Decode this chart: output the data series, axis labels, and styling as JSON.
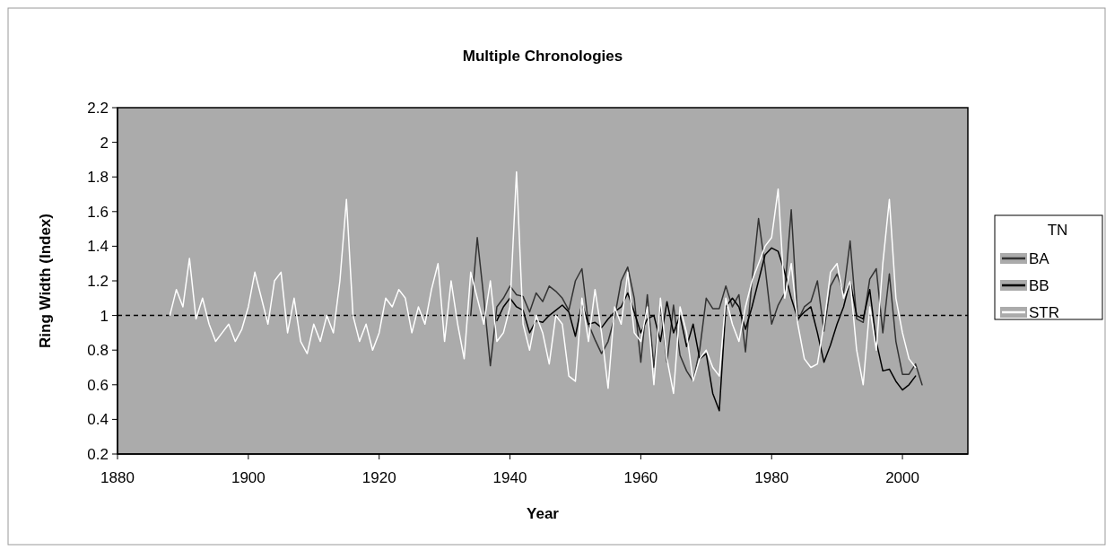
{
  "chart_data": {
    "type": "line",
    "title": "Multiple Chronologies",
    "xlabel": "Year",
    "ylabel": "Ring Width (Index)",
    "legend_title": "TN",
    "legend": "right",
    "grid": false,
    "xlim": [
      1880,
      2010
    ],
    "xticks": [
      1880,
      1900,
      1920,
      1940,
      1960,
      1980,
      2000
    ],
    "ylim": [
      0.2,
      2.2
    ],
    "yticks": [
      0.2,
      0.4,
      0.6,
      0.8,
      1,
      1.2,
      1.4,
      1.6,
      1.8,
      2,
      2.2
    ],
    "ref_lines": [
      {
        "axis": "y",
        "value": 1,
        "color": "#000000",
        "line_style": "dashed"
      }
    ],
    "series": [
      {
        "name": "BA",
        "color": "#333333",
        "x": [
          1934,
          1935,
          1936,
          1937,
          1938,
          1939,
          1940,
          1941,
          1942,
          1943,
          1944,
          1945,
          1946,
          1947,
          1948,
          1949,
          1950,
          1951,
          1952,
          1953,
          1954,
          1955,
          1956,
          1957,
          1958,
          1959,
          1960,
          1961,
          1962,
          1963,
          1964,
          1965,
          1966,
          1967,
          1968,
          1969,
          1970,
          1971,
          1972,
          1973,
          1974,
          1975,
          1976,
          1977,
          1978,
          1979,
          1980,
          1981,
          1982,
          1983,
          1984,
          1985,
          1986,
          1987,
          1988,
          1989,
          1990,
          1991,
          1992,
          1993,
          1994,
          1995,
          1996,
          1997,
          1998,
          1999,
          2000,
          2001,
          2002,
          2003
        ],
        "values": [
          1.0,
          1.45,
          1.1,
          0.71,
          1.05,
          1.1,
          1.17,
          1.12,
          1.11,
          1.02,
          1.13,
          1.08,
          1.17,
          1.14,
          1.1,
          1.03,
          1.2,
          1.27,
          0.95,
          0.86,
          0.78,
          0.85,
          0.99,
          1.2,
          1.28,
          1.1,
          0.73,
          1.12,
          0.7,
          1.07,
          0.73,
          1.06,
          0.77,
          0.68,
          0.62,
          0.8,
          1.1,
          1.04,
          1.04,
          1.17,
          1.05,
          1.12,
          0.79,
          1.2,
          1.56,
          1.28,
          0.95,
          1.06,
          1.13,
          1.61,
          0.97,
          1.05,
          1.08,
          1.2,
          0.91,
          1.17,
          1.24,
          1.13,
          1.43,
          0.98,
          0.96,
          1.21,
          1.27,
          0.9,
          1.24,
          0.85,
          0.66,
          0.66,
          0.72,
          0.6
        ]
      },
      {
        "name": "BB",
        "color": "#000000",
        "x": [
          1938,
          1939,
          1940,
          1941,
          1942,
          1943,
          1944,
          1945,
          1946,
          1947,
          1948,
          1949,
          1950,
          1951,
          1952,
          1953,
          1954,
          1955,
          1956,
          1957,
          1958,
          1959,
          1960,
          1961,
          1962,
          1963,
          1964,
          1965,
          1966,
          1967,
          1968,
          1969,
          1970,
          1971,
          1972,
          1973,
          1974,
          1975,
          1976,
          1977,
          1978,
          1979,
          1980,
          1981,
          1982,
          1983,
          1984,
          1985,
          1986,
          1987,
          1988,
          1989,
          1990,
          1991,
          1992,
          1993,
          1994,
          1995,
          1996,
          1997,
          1998,
          1999,
          2000,
          2001,
          2002
        ],
        "values": [
          0.97,
          1.05,
          1.1,
          1.05,
          1.03,
          0.9,
          0.97,
          0.96,
          1.0,
          1.03,
          1.06,
          1.02,
          0.88,
          1.07,
          0.95,
          0.96,
          0.93,
          0.98,
          1.02,
          1.05,
          1.13,
          1.02,
          0.9,
          0.98,
          1.0,
          0.85,
          1.08,
          0.9,
          1.0,
          0.82,
          0.95,
          0.75,
          0.78,
          0.55,
          0.45,
          1.05,
          1.1,
          1.05,
          0.92,
          1.05,
          1.2,
          1.35,
          1.39,
          1.37,
          1.25,
          1.1,
          0.98,
          1.02,
          1.05,
          0.9,
          0.73,
          0.83,
          0.95,
          1.05,
          1.2,
          1.0,
          0.98,
          1.15,
          0.85,
          0.68,
          0.69,
          0.62,
          0.57,
          0.6,
          0.65
        ]
      },
      {
        "name": "STR",
        "color": "#ffffff",
        "x": [
          1888,
          1889,
          1890,
          1891,
          1892,
          1893,
          1894,
          1895,
          1896,
          1897,
          1898,
          1899,
          1900,
          1901,
          1902,
          1903,
          1904,
          1905,
          1906,
          1907,
          1908,
          1909,
          1910,
          1911,
          1912,
          1913,
          1914,
          1915,
          1916,
          1917,
          1918,
          1919,
          1920,
          1921,
          1922,
          1923,
          1924,
          1925,
          1926,
          1927,
          1928,
          1929,
          1930,
          1931,
          1932,
          1933,
          1934,
          1935,
          1936,
          1937,
          1938,
          1939,
          1940,
          1941,
          1942,
          1943,
          1944,
          1945,
          1946,
          1947,
          1948,
          1949,
          1950,
          1951,
          1952,
          1953,
          1954,
          1955,
          1956,
          1957,
          1958,
          1959,
          1960,
          1961,
          1962,
          1963,
          1964,
          1965,
          1966,
          1967,
          1968,
          1969,
          1970,
          1971,
          1972,
          1973,
          1974,
          1975,
          1976,
          1977,
          1978,
          1979,
          1980,
          1981,
          1982,
          1983,
          1984,
          1985,
          1986,
          1987,
          1988,
          1989,
          1990,
          1991,
          1992,
          1993,
          1994,
          1995,
          1996,
          1997,
          1998,
          1999,
          2000,
          2001,
          2002
        ],
        "values": [
          1.0,
          1.15,
          1.05,
          1.33,
          0.98,
          1.1,
          0.95,
          0.85,
          0.9,
          0.95,
          0.85,
          0.92,
          1.05,
          1.25,
          1.1,
          0.95,
          1.2,
          1.25,
          0.9,
          1.1,
          0.85,
          0.78,
          0.95,
          0.85,
          1.0,
          0.9,
          1.2,
          1.67,
          1.0,
          0.85,
          0.95,
          0.8,
          0.9,
          1.1,
          1.05,
          1.15,
          1.1,
          0.9,
          1.05,
          0.95,
          1.15,
          1.3,
          0.85,
          1.2,
          0.95,
          0.75,
          1.25,
          1.1,
          0.95,
          1.2,
          0.85,
          0.9,
          1.05,
          1.83,
          0.95,
          0.8,
          1.0,
          0.9,
          0.72,
          1.0,
          0.95,
          0.65,
          0.62,
          1.1,
          0.85,
          1.15,
          0.9,
          0.58,
          1.05,
          0.95,
          1.25,
          0.9,
          0.85,
          1.05,
          0.6,
          1.1,
          0.75,
          0.55,
          1.05,
          0.9,
          0.62,
          0.75,
          0.8,
          0.7,
          0.65,
          1.1,
          0.95,
          0.85,
          1.05,
          1.2,
          1.3,
          1.4,
          1.45,
          1.73,
          1.1,
          1.3,
          0.95,
          0.75,
          0.7,
          0.72,
          0.95,
          1.25,
          1.3,
          1.1,
          1.2,
          0.8,
          0.6,
          1.05,
          0.8,
          1.3,
          1.67,
          1.1,
          0.9,
          0.75,
          0.7
        ]
      }
    ]
  }
}
